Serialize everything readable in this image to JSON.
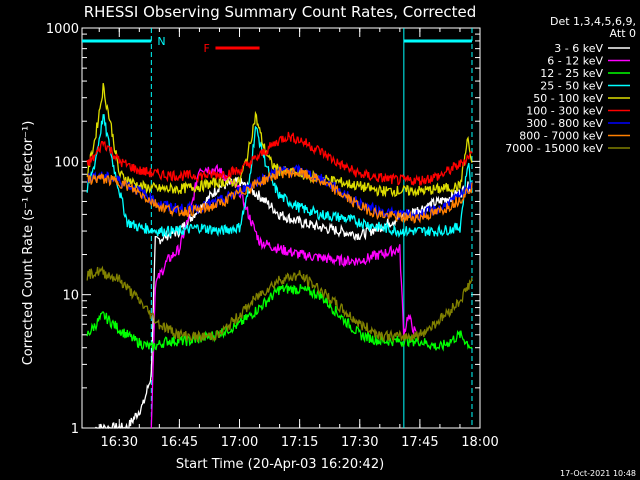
{
  "chart_data": {
    "type": "line",
    "title": "RHESSI Observing Summary Count Rates, Corrected",
    "xlabel": "Start Time (20-Apr-03 16:20:42)",
    "ylabel": "Corrected Count Rate (s⁻¹ detector⁻¹)",
    "yscale": "log",
    "ylim": [
      1,
      1000
    ],
    "xlim": [
      "16:20:42",
      "18:00:00"
    ],
    "x_ticks": [
      "16:30",
      "16:45",
      "17:00",
      "17:15",
      "17:30",
      "17:45",
      "18:00"
    ],
    "y_ticks": [
      "1",
      "10",
      "100",
      "1000"
    ],
    "grid": false,
    "legend_header": [
      "Det 1,3,4,5,6,9,",
      "Att 0"
    ],
    "legend_position": "right",
    "annotations": [
      {
        "label": "N",
        "color": "#00ffff",
        "segments": [
          [
            "16:20:42",
            "16:38:00"
          ],
          [
            "17:41:00",
            "17:58:00"
          ]
        ]
      },
      {
        "label": "F",
        "color": "#ff0000",
        "segments": [
          [
            "16:54:00",
            "17:05:00"
          ]
        ]
      }
    ],
    "vertical_markers": [
      {
        "time": "16:38:00",
        "color": "#00ffff",
        "style": "dashed"
      },
      {
        "time": "17:41:00",
        "color": "#00ffff",
        "style": "solid"
      },
      {
        "time": "17:58:00",
        "color": "#00ffff",
        "style": "dashed"
      }
    ],
    "series": [
      {
        "name": "3 - 6 keV",
        "color": "#ffffff",
        "x": [
          "16:24",
          "16:28",
          "16:32",
          "16:36",
          "16:38",
          "16:39",
          "16:42",
          "16:45",
          "16:50",
          "16:55",
          "17:00",
          "17:05",
          "17:10",
          "17:15",
          "17:20",
          "17:25",
          "17:30",
          "17:35",
          "17:40",
          "17:45",
          "17:50",
          "17:55",
          "17:58"
        ],
        "y": [
          1,
          1,
          1,
          1.5,
          2.5,
          25,
          28,
          30,
          45,
          65,
          70,
          55,
          40,
          35,
          32,
          30,
          28,
          32,
          38,
          44,
          50,
          58,
          68
        ]
      },
      {
        "name": "6 - 12 keV",
        "color": "#ff00ff",
        "x": [
          "16:38",
          "16:39",
          "16:42",
          "16:45",
          "16:48",
          "16:50",
          "16:55",
          "17:00",
          "17:03",
          "17:05",
          "17:10",
          "17:15",
          "17:20",
          "17:25",
          "17:30",
          "17:35",
          "17:40",
          "17:41",
          "17:42",
          "17:44"
        ],
        "y": [
          1,
          12,
          18,
          22,
          45,
          90,
          85,
          60,
          35,
          25,
          22,
          20,
          19,
          18,
          18,
          20,
          22,
          5,
          7,
          5
        ]
      },
      {
        "name": "12 - 25 keV",
        "color": "#00ff00",
        "x": [
          "16:22",
          "16:26",
          "16:30",
          "16:34",
          "16:38",
          "16:42",
          "16:48",
          "16:54",
          "17:00",
          "17:05",
          "17:10",
          "17:15",
          "17:20",
          "17:25",
          "17:30",
          "17:35",
          "17:40",
          "17:45",
          "17:50",
          "17:55",
          "17:58"
        ],
        "y": [
          5,
          7,
          5.5,
          4.5,
          4,
          4.5,
          4.5,
          5,
          6,
          8,
          11,
          11,
          10,
          7,
          5,
          4.5,
          4.5,
          4.5,
          4,
          5,
          4
        ]
      },
      {
        "name": "25 - 50 keV",
        "color": "#00ffff",
        "x": [
          "16:22",
          "16:24",
          "16:26",
          "16:28",
          "16:30",
          "16:32",
          "16:35",
          "16:40",
          "16:45",
          "16:50",
          "16:55",
          "17:00",
          "17:02",
          "17:04",
          "17:06",
          "17:08",
          "17:10",
          "17:15",
          "17:20",
          "17:25",
          "17:30",
          "17:35",
          "17:40",
          "17:45",
          "17:50",
          "17:55",
          "17:57",
          "17:58"
        ],
        "y": [
          60,
          100,
          220,
          110,
          60,
          35,
          32,
          30,
          30,
          32,
          30,
          32,
          55,
          180,
          110,
          70,
          55,
          45,
          40,
          38,
          35,
          32,
          30,
          30,
          30,
          32,
          100,
          60
        ]
      },
      {
        "name": "50 - 100 keV",
        "color": "#dddd00",
        "x": [
          "16:22",
          "16:24",
          "16:26",
          "16:28",
          "16:30",
          "16:35",
          "16:40",
          "16:45",
          "16:50",
          "16:55",
          "17:00",
          "17:02",
          "17:04",
          "17:06",
          "17:08",
          "17:10",
          "17:15",
          "17:20",
          "17:25",
          "17:30",
          "17:35",
          "17:40",
          "17:45",
          "17:50",
          "17:55",
          "17:57",
          "17:58"
        ],
        "y": [
          80,
          150,
          360,
          180,
          80,
          65,
          62,
          62,
          65,
          70,
          70,
          110,
          220,
          130,
          95,
          85,
          80,
          75,
          70,
          65,
          60,
          60,
          60,
          62,
          65,
          150,
          90
        ]
      },
      {
        "name": "100 - 300 keV",
        "color": "#ff0000",
        "x": [
          "16:22",
          "16:24",
          "16:26",
          "16:28",
          "16:30",
          "16:35",
          "16:40",
          "16:45",
          "16:50",
          "16:55",
          "17:00",
          "17:05",
          "17:10",
          "17:12",
          "17:15",
          "17:20",
          "17:25",
          "17:30",
          "17:35",
          "17:40",
          "17:45",
          "17:50",
          "17:55",
          "17:58"
        ],
        "y": [
          95,
          110,
          140,
          120,
          100,
          85,
          80,
          78,
          78,
          80,
          85,
          110,
          145,
          155,
          145,
          120,
          95,
          80,
          75,
          72,
          72,
          78,
          95,
          115
        ]
      },
      {
        "name": "300 - 800 keV",
        "color": "#0000ff",
        "x": [
          "16:22",
          "16:25",
          "16:30",
          "16:35",
          "16:40",
          "16:45",
          "16:50",
          "16:55",
          "17:00",
          "17:05",
          "17:10",
          "17:15",
          "17:20",
          "17:25",
          "17:30",
          "17:35",
          "17:40",
          "17:45",
          "17:50",
          "17:55",
          "17:58"
        ],
        "y": [
          75,
          78,
          72,
          60,
          48,
          44,
          45,
          50,
          60,
          72,
          85,
          85,
          75,
          60,
          48,
          42,
          40,
          40,
          44,
          55,
          68
        ]
      },
      {
        "name": "800 - 7000 keV",
        "color": "#ff7f00",
        "x": [
          "16:22",
          "16:25",
          "16:30",
          "16:35",
          "16:40",
          "16:45",
          "16:50",
          "16:55",
          "17:00",
          "17:05",
          "17:10",
          "17:15",
          "17:20",
          "17:25",
          "17:30",
          "17:35",
          "17:40",
          "17:45",
          "17:50",
          "17:55",
          "17:58"
        ],
        "y": [
          72,
          75,
          70,
          58,
          46,
          42,
          43,
          48,
          58,
          70,
          82,
          82,
          72,
          58,
          46,
          40,
          38,
          38,
          42,
          52,
          65
        ]
      },
      {
        "name": "7000 - 15000 keV",
        "color": "#808000",
        "x": [
          "16:22",
          "16:25",
          "16:30",
          "16:35",
          "16:40",
          "16:45",
          "16:50",
          "16:55",
          "17:00",
          "17:05",
          "17:10",
          "17:15",
          "17:20",
          "17:25",
          "17:30",
          "17:35",
          "17:40",
          "17:45",
          "17:50",
          "17:55",
          "17:58"
        ],
        "y": [
          14,
          15,
          13,
          9,
          6,
          5,
          4.8,
          5,
          7,
          10,
          13,
          14,
          11,
          8,
          6,
          5,
          4.8,
          5,
          6.5,
          9,
          13
        ]
      }
    ]
  },
  "footer": {
    "timestamp": "17-Oct-2021 10:48"
  }
}
